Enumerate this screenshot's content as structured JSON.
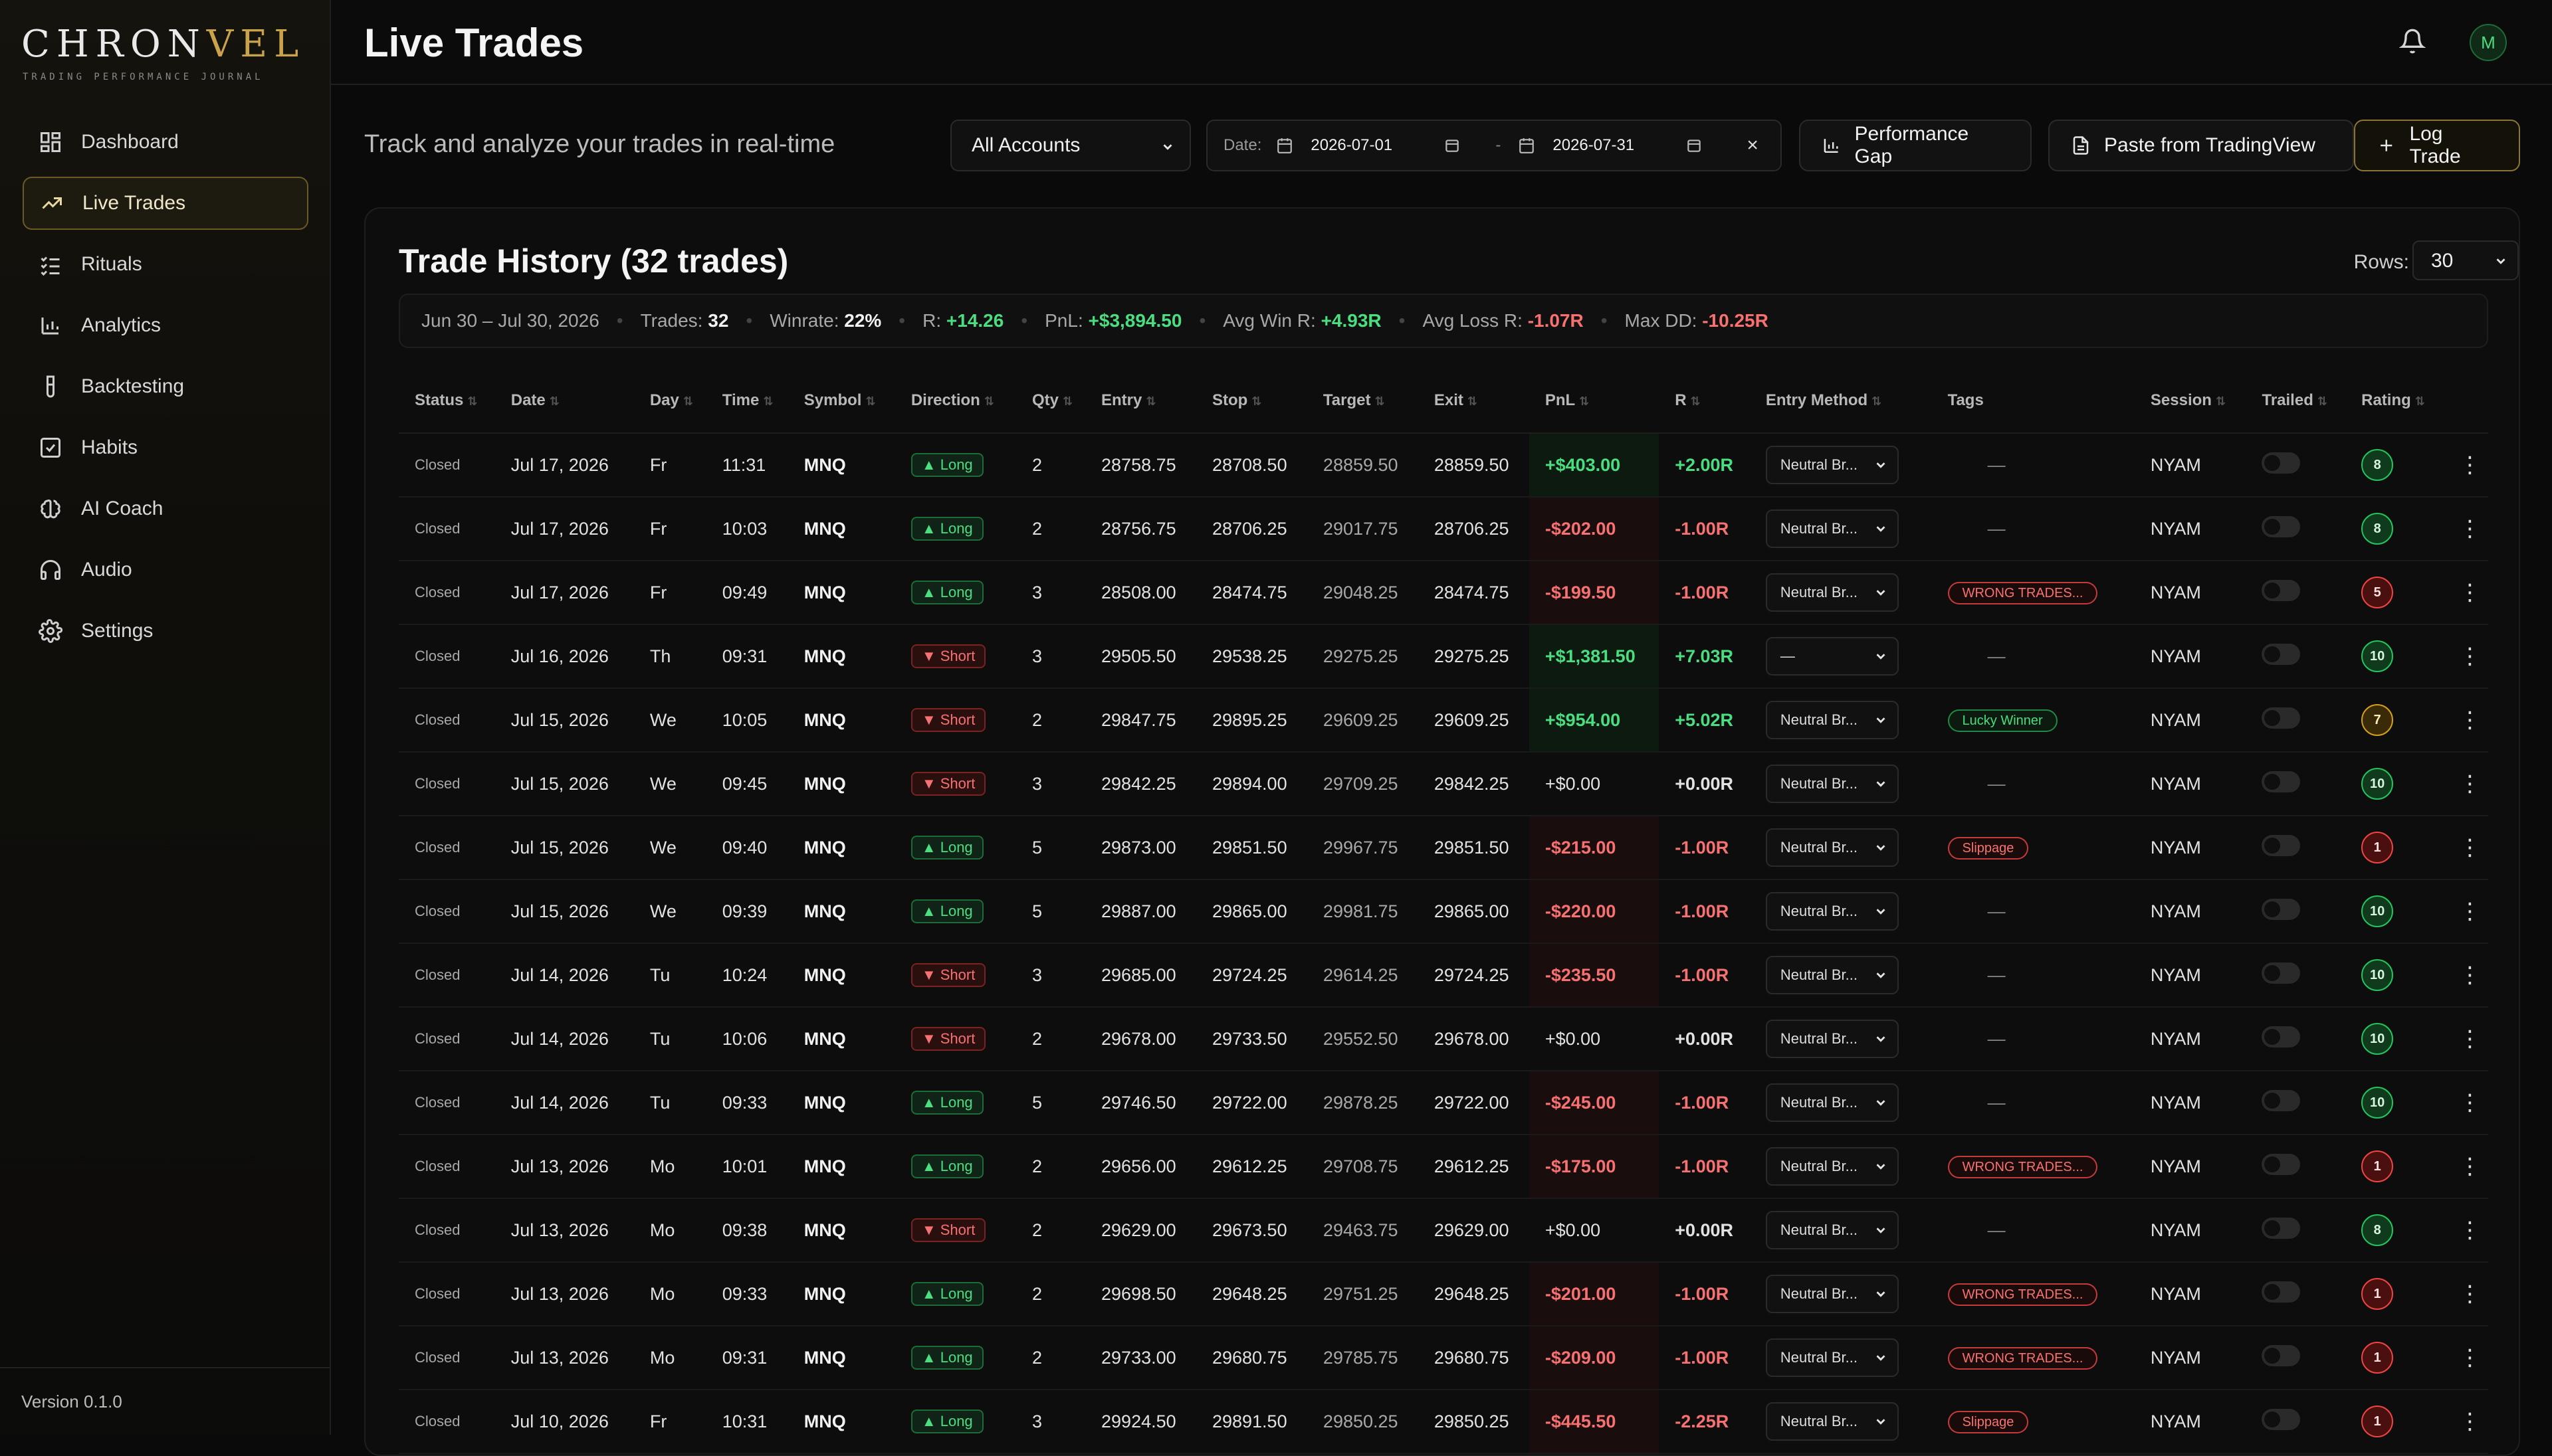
{
  "app": {
    "logo_main": "CHRON",
    "logo_accent": "VEL",
    "logo_subtitle": "TRADING PERFORMANCE JOURNAL",
    "version": "Version 0.1.0"
  },
  "sidebar": {
    "items": [
      {
        "label": "Dashboard",
        "icon": "dashboard-icon"
      },
      {
        "label": "Live Trades",
        "icon": "trending-up-icon"
      },
      {
        "label": "Rituals",
        "icon": "checklist-icon"
      },
      {
        "label": "Analytics",
        "icon": "bar-chart-icon"
      },
      {
        "label": "Backtesting",
        "icon": "test-tube-icon"
      },
      {
        "label": "Habits",
        "icon": "checkbox-icon"
      },
      {
        "label": "AI Coach",
        "icon": "brain-icon"
      },
      {
        "label": "Audio",
        "icon": "headphones-icon"
      },
      {
        "label": "Settings",
        "icon": "gear-icon"
      }
    ],
    "active_index": 1
  },
  "header": {
    "title": "Live Trades",
    "avatar_initial": "M"
  },
  "toolbar": {
    "subtitle": "Track and analyze your trades in real-time",
    "accounts_value": "All Accounts",
    "date_label": "Date:",
    "date_from": "2026-07-01",
    "date_to": "2026-07-31",
    "date_sep": "-",
    "perf_gap_label": "Performance Gap",
    "paste_label": "Paste from TradingView",
    "log_trade_label": "Log Trade"
  },
  "history": {
    "title": "Trade History (32 trades)",
    "rows_label": "Rows:",
    "rows_value": "30",
    "stats": {
      "range": "Jun 30 – Jul 30, 2026",
      "trades_label": "Trades:",
      "trades_value": "32",
      "winrate_label": "Winrate:",
      "winrate_value": "22%",
      "r_label": "R:",
      "r_value": "+14.26",
      "pnl_label": "PnL:",
      "pnl_value": "+$3,894.50",
      "avg_win_label": "Avg Win R:",
      "avg_win_value": "+4.93R",
      "avg_loss_label": "Avg Loss R:",
      "avg_loss_value": "-1.07R",
      "max_dd_label": "Max DD:",
      "max_dd_value": "-10.25R"
    },
    "columns": [
      "Status",
      "Date",
      "Day",
      "Time",
      "Symbol",
      "Direction",
      "Qty",
      "Entry",
      "Stop",
      "Target",
      "Exit",
      "PnL",
      "R",
      "Entry Method",
      "Tags",
      "Session",
      "Trailed",
      "Rating"
    ],
    "rows": [
      {
        "status": "Closed",
        "date": "Jul 17, 2026",
        "day": "Fr",
        "time": "11:31",
        "symbol": "MNQ",
        "direction": "Long",
        "qty": "2",
        "entry": "28758.75",
        "stop": "28708.50",
        "target": "28859.50",
        "exit": "28859.50",
        "pnl": "+$403.00",
        "r": "+2.00R",
        "method": "Neutral Br...",
        "tag": "",
        "session": "NYAM",
        "rating": "8"
      },
      {
        "status": "Closed",
        "date": "Jul 17, 2026",
        "day": "Fr",
        "time": "10:03",
        "symbol": "MNQ",
        "direction": "Long",
        "qty": "2",
        "entry": "28756.75",
        "stop": "28706.25",
        "target": "29017.75",
        "exit": "28706.25",
        "pnl": "-$202.00",
        "r": "-1.00R",
        "method": "Neutral Br...",
        "tag": "",
        "session": "NYAM",
        "rating": "8"
      },
      {
        "status": "Closed",
        "date": "Jul 17, 2026",
        "day": "Fr",
        "time": "09:49",
        "symbol": "MNQ",
        "direction": "Long",
        "qty": "3",
        "entry": "28508.00",
        "stop": "28474.75",
        "target": "29048.25",
        "exit": "28474.75",
        "pnl": "-$199.50",
        "r": "-1.00R",
        "method": "Neutral Br...",
        "tag": "WRONG TRADES...",
        "session": "NYAM",
        "rating": "5"
      },
      {
        "status": "Closed",
        "date": "Jul 16, 2026",
        "day": "Th",
        "time": "09:31",
        "symbol": "MNQ",
        "direction": "Short",
        "qty": "3",
        "entry": "29505.50",
        "stop": "29538.25",
        "target": "29275.25",
        "exit": "29275.25",
        "pnl": "+$1,381.50",
        "r": "+7.03R",
        "method": "—",
        "tag": "",
        "session": "NYAM",
        "rating": "10"
      },
      {
        "status": "Closed",
        "date": "Jul 15, 2026",
        "day": "We",
        "time": "10:05",
        "symbol": "MNQ",
        "direction": "Short",
        "qty": "2",
        "entry": "29847.75",
        "stop": "29895.25",
        "target": "29609.25",
        "exit": "29609.25",
        "pnl": "+$954.00",
        "r": "+5.02R",
        "method": "Neutral Br...",
        "tag": "Lucky Winner",
        "session": "NYAM",
        "rating": "7"
      },
      {
        "status": "Closed",
        "date": "Jul 15, 2026",
        "day": "We",
        "time": "09:45",
        "symbol": "MNQ",
        "direction": "Short",
        "qty": "3",
        "entry": "29842.25",
        "stop": "29894.00",
        "target": "29709.25",
        "exit": "29842.25",
        "pnl": "+$0.00",
        "r": "+0.00R",
        "method": "Neutral Br...",
        "tag": "",
        "session": "NYAM",
        "rating": "10"
      },
      {
        "status": "Closed",
        "date": "Jul 15, 2026",
        "day": "We",
        "time": "09:40",
        "symbol": "MNQ",
        "direction": "Long",
        "qty": "5",
        "entry": "29873.00",
        "stop": "29851.50",
        "target": "29967.75",
        "exit": "29851.50",
        "pnl": "-$215.00",
        "r": "-1.00R",
        "method": "Neutral Br...",
        "tag": "Slippage",
        "session": "NYAM",
        "rating": "1"
      },
      {
        "status": "Closed",
        "date": "Jul 15, 2026",
        "day": "We",
        "time": "09:39",
        "symbol": "MNQ",
        "direction": "Long",
        "qty": "5",
        "entry": "29887.00",
        "stop": "29865.00",
        "target": "29981.75",
        "exit": "29865.00",
        "pnl": "-$220.00",
        "r": "-1.00R",
        "method": "Neutral Br...",
        "tag": "",
        "session": "NYAM",
        "rating": "10"
      },
      {
        "status": "Closed",
        "date": "Jul 14, 2026",
        "day": "Tu",
        "time": "10:24",
        "symbol": "MNQ",
        "direction": "Short",
        "qty": "3",
        "entry": "29685.00",
        "stop": "29724.25",
        "target": "29614.25",
        "exit": "29724.25",
        "pnl": "-$235.50",
        "r": "-1.00R",
        "method": "Neutral Br...",
        "tag": "",
        "session": "NYAM",
        "rating": "10"
      },
      {
        "status": "Closed",
        "date": "Jul 14, 2026",
        "day": "Tu",
        "time": "10:06",
        "symbol": "MNQ",
        "direction": "Short",
        "qty": "2",
        "entry": "29678.00",
        "stop": "29733.50",
        "target": "29552.50",
        "exit": "29678.00",
        "pnl": "+$0.00",
        "r": "+0.00R",
        "method": "Neutral Br...",
        "tag": "",
        "session": "NYAM",
        "rating": "10"
      },
      {
        "status": "Closed",
        "date": "Jul 14, 2026",
        "day": "Tu",
        "time": "09:33",
        "symbol": "MNQ",
        "direction": "Long",
        "qty": "5",
        "entry": "29746.50",
        "stop": "29722.00",
        "target": "29878.25",
        "exit": "29722.00",
        "pnl": "-$245.00",
        "r": "-1.00R",
        "method": "Neutral Br...",
        "tag": "",
        "session": "NYAM",
        "rating": "10"
      },
      {
        "status": "Closed",
        "date": "Jul 13, 2026",
        "day": "Mo",
        "time": "10:01",
        "symbol": "MNQ",
        "direction": "Long",
        "qty": "2",
        "entry": "29656.00",
        "stop": "29612.25",
        "target": "29708.75",
        "exit": "29612.25",
        "pnl": "-$175.00",
        "r": "-1.00R",
        "method": "Neutral Br...",
        "tag": "WRONG TRADES...",
        "session": "NYAM",
        "rating": "1"
      },
      {
        "status": "Closed",
        "date": "Jul 13, 2026",
        "day": "Mo",
        "time": "09:38",
        "symbol": "MNQ",
        "direction": "Short",
        "qty": "2",
        "entry": "29629.00",
        "stop": "29673.50",
        "target": "29463.75",
        "exit": "29629.00",
        "pnl": "+$0.00",
        "r": "+0.00R",
        "method": "Neutral Br...",
        "tag": "",
        "session": "NYAM",
        "rating": "8"
      },
      {
        "status": "Closed",
        "date": "Jul 13, 2026",
        "day": "Mo",
        "time": "09:33",
        "symbol": "MNQ",
        "direction": "Long",
        "qty": "2",
        "entry": "29698.50",
        "stop": "29648.25",
        "target": "29751.25",
        "exit": "29648.25",
        "pnl": "-$201.00",
        "r": "-1.00R",
        "method": "Neutral Br...",
        "tag": "WRONG TRADES...",
        "session": "NYAM",
        "rating": "1"
      },
      {
        "status": "Closed",
        "date": "Jul 13, 2026",
        "day": "Mo",
        "time": "09:31",
        "symbol": "MNQ",
        "direction": "Long",
        "qty": "2",
        "entry": "29733.00",
        "stop": "29680.75",
        "target": "29785.75",
        "exit": "29680.75",
        "pnl": "-$209.00",
        "r": "-1.00R",
        "method": "Neutral Br...",
        "tag": "WRONG TRADES...",
        "session": "NYAM",
        "rating": "1"
      },
      {
        "status": "Closed",
        "date": "Jul 10, 2026",
        "day": "Fr",
        "time": "10:31",
        "symbol": "MNQ",
        "direction": "Long",
        "qty": "3",
        "entry": "29924.50",
        "stop": "29891.50",
        "target": "29850.25",
        "exit": "29850.25",
        "pnl": "-$445.50",
        "r": "-2.25R",
        "method": "Neutral Br...",
        "tag": "Slippage",
        "session": "NYAM",
        "rating": "1"
      }
    ]
  },
  "colors": {
    "accent_gold": "#c9a24a",
    "positive": "#4ade80",
    "negative": "#f87171"
  }
}
